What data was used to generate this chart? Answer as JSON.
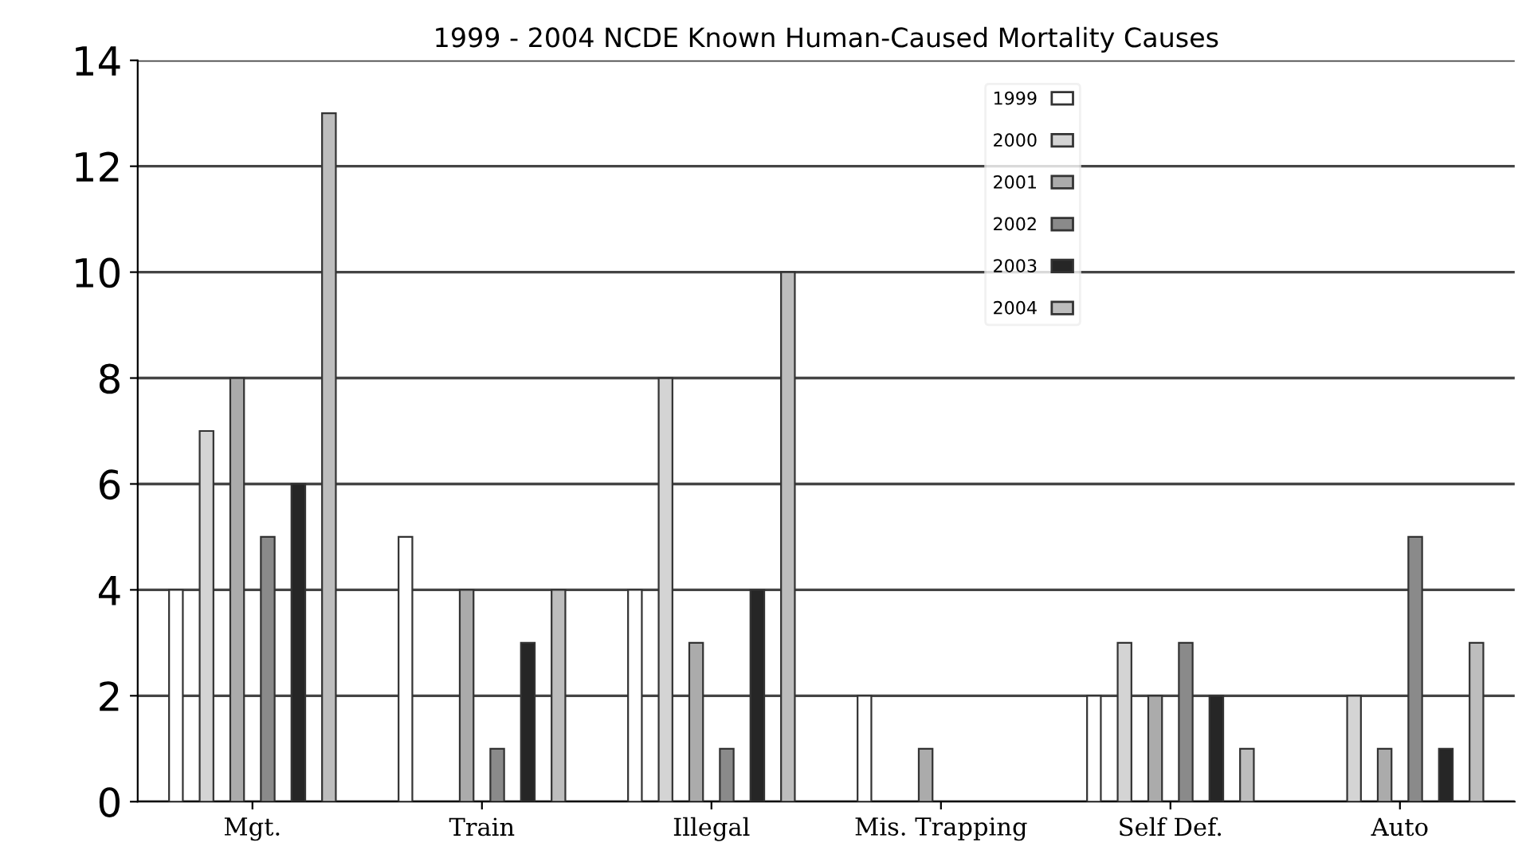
{
  "chart_data": {
    "type": "bar",
    "title": "1999 - 2004 NCDE Known Human-Caused Mortality Causes",
    "categories": [
      "Mgt.",
      "Train",
      "Illegal",
      "Mis. Trapping",
      "Self Def.",
      "Auto"
    ],
    "series": [
      {
        "name": "1999",
        "color": "#ffffff",
        "values": [
          4,
          5,
          4,
          2,
          2,
          0
        ]
      },
      {
        "name": "2000",
        "color": "#d4d4d4",
        "values": [
          7,
          0,
          8,
          0,
          3,
          2
        ]
      },
      {
        "name": "2001",
        "color": "#ababab",
        "values": [
          8,
          4,
          3,
          1,
          2,
          1
        ]
      },
      {
        "name": "2002",
        "color": "#8a8a8a",
        "values": [
          5,
          1,
          1,
          0,
          3,
          5
        ]
      },
      {
        "name": "2003",
        "color": "#262626",
        "values": [
          6,
          3,
          4,
          0,
          2,
          1
        ]
      },
      {
        "name": "2004",
        "color": "#bdbdbd",
        "values": [
          13,
          4,
          10,
          0,
          1,
          3
        ]
      }
    ],
    "ylim": [
      0,
      14
    ],
    "yticks": [
      0,
      2,
      4,
      6,
      8,
      10,
      12,
      14
    ],
    "grid": "y",
    "legend": "top"
  }
}
